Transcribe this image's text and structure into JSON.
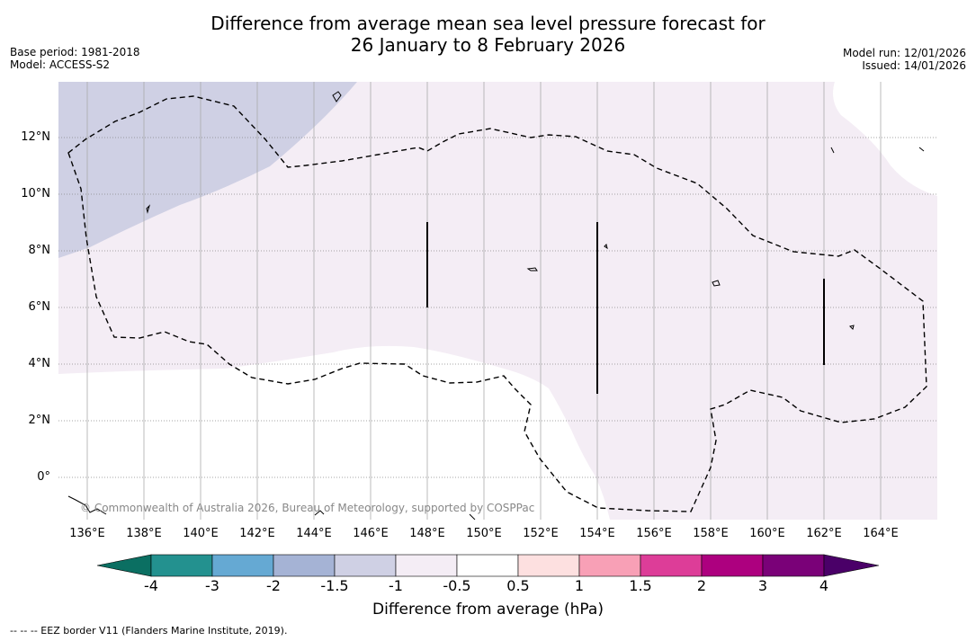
{
  "title": {
    "line1": "Difference from average mean sea level pressure forecast for",
    "line2": "26 January to 8 February 2026"
  },
  "meta_left": {
    "base_period": "Base period: 1981-2018",
    "model": "Model: ACCESS-S2"
  },
  "meta_right": {
    "model_run": "Model run: 12/01/2026",
    "issued": "Issued: 14/01/2026"
  },
  "map": {
    "lat_labels": [
      "12°N",
      "10°N",
      "8°N",
      "6°N",
      "4°N",
      "2°N",
      "0°"
    ],
    "lon_labels": [
      "136°E",
      "138°E",
      "140°E",
      "142°E",
      "144°E",
      "146°E",
      "148°E",
      "150°E",
      "152°E",
      "154°E",
      "156°E",
      "158°E",
      "160°E",
      "162°E",
      "164°E"
    ],
    "copyright": "© Commonwealth of Australia 2026, Bureau of Meteorology, supported by COSPPac",
    "fill_colors": {
      "minus_1_5_to_minus_1": "#cfd0e4",
      "minus_1_to_minus_0_5": "#f4edf5",
      "land": "#ffffff"
    }
  },
  "colorbar": {
    "ticks": [
      "-4",
      "-3",
      "-2",
      "-1.5",
      "-1",
      "-0.5",
      "0.5",
      "1",
      "1.5",
      "2",
      "3",
      "4"
    ],
    "colors": [
      "#0b6f62",
      "#23918f",
      "#65a9d3",
      "#a5b3d5",
      "#cfd0e4",
      "#f4edf5",
      "#ffffff",
      "#fde0e0",
      "#f8a0b6",
      "#dd3d98",
      "#ad007f",
      "#7a0178",
      "#4a0068"
    ],
    "label": "Difference from average (hPa)"
  },
  "footnote": "--  --  -- EEZ border V11 (Flanders Marine Institute, 2019)."
}
